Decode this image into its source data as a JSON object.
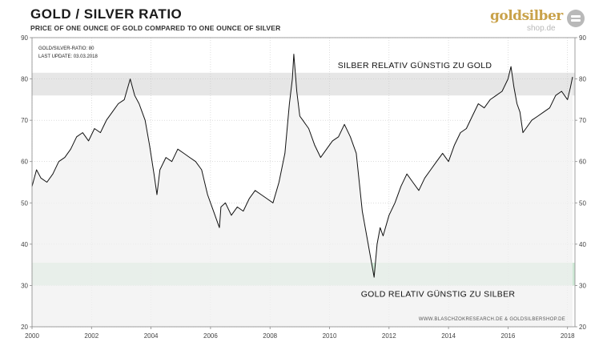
{
  "header": {
    "title": "GOLD / SILVER  RATIO",
    "subtitle": "PRICE OF ONE OUNCE OF GOLD COMPARED TO ONE OUNCE OF SILVER"
  },
  "logo": {
    "word": "goldsilber",
    "sub": "shop.de"
  },
  "info": {
    "ratio_line": "GOLD/SILVER-RATIO:  80",
    "update_line": "LAST UPDATE:  03.03.2018"
  },
  "credit": "WWW.BLASCHZOKRESEARCH.DE   &  GOLDSILBERSHOP.DE",
  "colors": {
    "line": "#111111",
    "upper_band": "#e6e6e6",
    "lower_band": "#cfe9d6",
    "background_fill": "#f0f0f0"
  },
  "chart_data": {
    "type": "line",
    "title": "GOLD / SILVER  RATIO",
    "subtitle": "PRICE OF ONE OUNCE OF GOLD COMPARED TO ONE OUNCE OF SILVER",
    "xlabel": "",
    "ylabel": "",
    "xlim": [
      2000,
      2018.25
    ],
    "ylim": [
      20,
      90
    ],
    "x_ticks": [
      2000,
      2002,
      2004,
      2006,
      2008,
      2010,
      2012,
      2014,
      2016,
      2018
    ],
    "y_ticks": [
      20,
      30,
      40,
      50,
      60,
      70,
      80,
      90
    ],
    "y_axis_both_sides": true,
    "grid": true,
    "bands": [
      {
        "y_from": 76,
        "y_to": 81.5,
        "label": "SILBER RELATIV GÜNSTIG ZU GOLD",
        "color": "#e6e6e6"
      },
      {
        "y_from": 30,
        "y_to": 35.5,
        "label": "GOLD RELATIV GÜNSTIG ZU SILBER",
        "color": "#cfe9d6"
      }
    ],
    "series": [
      {
        "x": [
          2000.0,
          2000.15,
          2000.3,
          2000.5,
          2000.7,
          2000.9,
          2001.1,
          2001.3,
          2001.5,
          2001.7,
          2001.9,
          2002.1,
          2002.3,
          2002.5,
          2002.7,
          2002.9,
          2003.1,
          2003.3,
          2003.45,
          2003.6,
          2003.8,
          2003.95,
          2004.1,
          2004.2,
          2004.3,
          2004.5,
          2004.7,
          2004.9,
          2005.1,
          2005.3,
          2005.5,
          2005.7,
          2005.9,
          2006.1,
          2006.2,
          2006.3,
          2006.35,
          2006.5,
          2006.7,
          2006.9,
          2007.1,
          2007.3,
          2007.5,
          2007.7,
          2007.9,
          2008.1,
          2008.3,
          2008.5,
          2008.65,
          2008.75,
          2008.8,
          2008.9,
          2009.0,
          2009.1,
          2009.3,
          2009.5,
          2009.7,
          2009.9,
          2010.1,
          2010.3,
          2010.5,
          2010.7,
          2010.9,
          2011.1,
          2011.2,
          2011.3,
          2011.4,
          2011.5,
          2011.6,
          2011.7,
          2011.8,
          2012.0,
          2012.2,
          2012.4,
          2012.6,
          2012.8,
          2013.0,
          2013.2,
          2013.4,
          2013.6,
          2013.8,
          2014.0,
          2014.2,
          2014.4,
          2014.6,
          2014.8,
          2015.0,
          2015.2,
          2015.4,
          2015.6,
          2015.8,
          2016.0,
          2016.1,
          2016.2,
          2016.3,
          2016.4,
          2016.5,
          2016.6,
          2016.8,
          2017.0,
          2017.2,
          2017.4,
          2017.6,
          2017.8,
          2018.0,
          2018.1,
          2018.17
        ],
        "y": [
          54,
          58,
          56,
          55,
          57,
          60,
          61,
          63,
          66,
          67,
          65,
          68,
          67,
          70,
          72,
          74,
          75,
          80,
          76,
          74,
          70,
          64,
          57,
          52,
          58,
          61,
          60,
          63,
          62,
          61,
          60,
          58,
          52,
          48,
          46,
          44,
          49,
          50,
          47,
          49,
          48,
          51,
          53,
          52,
          51,
          50,
          55,
          62,
          74,
          80,
          86,
          77,
          71,
          70,
          68,
          64,
          61,
          63,
          65,
          66,
          69,
          66,
          62,
          48,
          44,
          40,
          36,
          32,
          40,
          44,
          42,
          47,
          50,
          54,
          57,
          55,
          53,
          56,
          58,
          60,
          62,
          60,
          64,
          67,
          68,
          71,
          74,
          73,
          75,
          76,
          77,
          80,
          83,
          78,
          74,
          72,
          67,
          68,
          70,
          71,
          72,
          73,
          76,
          77,
          75,
          78,
          80.5
        ]
      }
    ]
  }
}
